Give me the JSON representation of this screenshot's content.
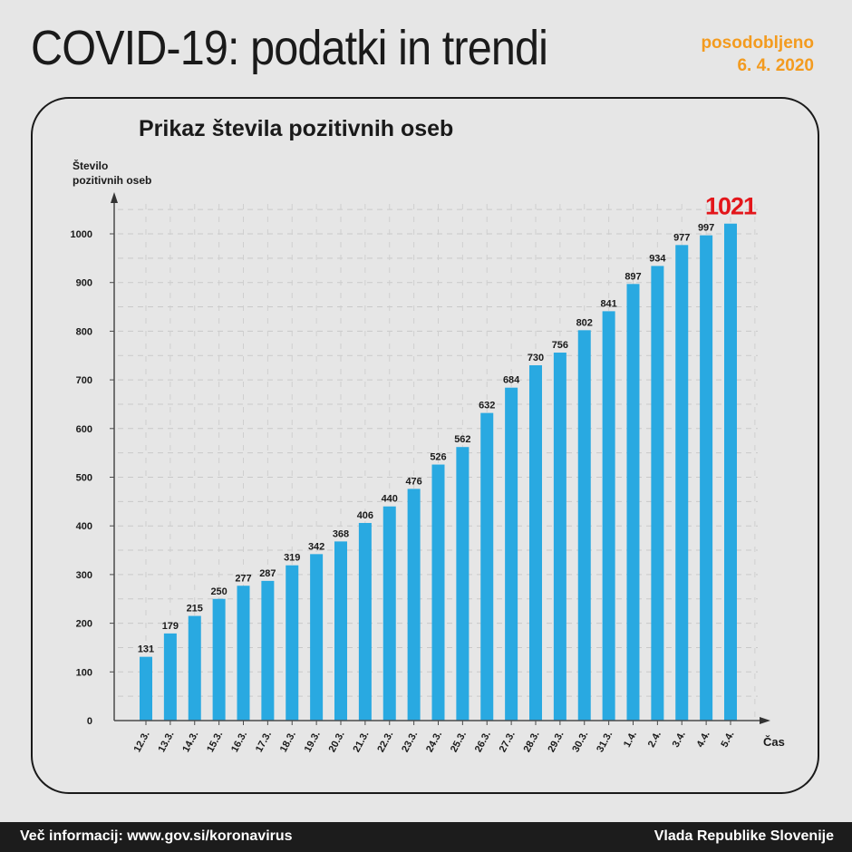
{
  "header": {
    "title": "COVID-19: podatki in trendi",
    "updated_label": "posodobljeno",
    "updated_date": "6. 4. 2020"
  },
  "colors": {
    "bar": "#29a9e1",
    "highlight": "#e3161b",
    "accent": "#f39b1f",
    "footer_bg": "#1c1c1c"
  },
  "chart_data": {
    "type": "bar",
    "title": "Prikaz števila pozitivnih oseb",
    "ylabel": "Število pozitivnih oseb",
    "xlabel": "Čas",
    "ylim": [
      0,
      1050
    ],
    "yticks": [
      0,
      100,
      200,
      300,
      400,
      500,
      600,
      700,
      800,
      900,
      1000
    ],
    "grid": true,
    "categories": [
      "12.3.",
      "13.3.",
      "14.3.",
      "15.3.",
      "16.3.",
      "17.3.",
      "18.3.",
      "19.3.",
      "20.3.",
      "21.3.",
      "22.3.",
      "23.3.",
      "24.3.",
      "25.3.",
      "26.3.",
      "27.3.",
      "28.3.",
      "29.3.",
      "30.3.",
      "31.3.",
      "1.4.",
      "2.4.",
      "3.4.",
      "4.4.",
      "5.4."
    ],
    "values": [
      131,
      179,
      215,
      250,
      277,
      287,
      319,
      342,
      368,
      406,
      440,
      476,
      526,
      562,
      632,
      684,
      730,
      756,
      802,
      841,
      897,
      934,
      977,
      997,
      1021
    ],
    "highlight_label": "1021"
  },
  "footer": {
    "left": "Več informacij: www.gov.si/koronavirus",
    "right": "Vlada Republike Slovenije"
  }
}
